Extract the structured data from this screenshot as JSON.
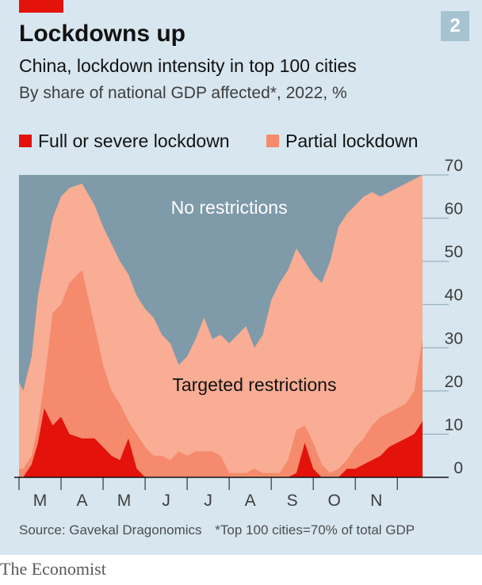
{
  "header": {
    "title": "Lockdowns up",
    "subtitle": "China, lockdown intensity in top 100 cities",
    "subtitle2": "By share of national GDP affected*, 2022, %",
    "chart_number": "2"
  },
  "legend": [
    {
      "label": "Full or severe lockdown",
      "color": "#e3120b"
    },
    {
      "label": "Partial lockdown",
      "color": "#f58a6d"
    }
  ],
  "footer": {
    "source": "Source: Gavekal Dragonomics",
    "note": "*Top 100 cities=70% of total GDP"
  },
  "brand": "The Economist",
  "colors": {
    "background": "#d7e6ef",
    "no_restrictions": "#7f9aa8",
    "targeted": "#f8ad94",
    "partial": "#f58a6d",
    "full": "#e3120b",
    "gridline": "#8aa5b3"
  },
  "chart_data": {
    "type": "area",
    "stacked": true,
    "title": "Lockdowns up",
    "ylabel": "By share of national GDP affected*, 2022, %",
    "ylim": [
      0,
      70
    ],
    "yticks": [
      0,
      10,
      20,
      30,
      40,
      50,
      60,
      70
    ],
    "xlim": [
      0,
      9.6
    ],
    "x_tick_labels": [
      "M",
      "A",
      "M",
      "J",
      "J",
      "A",
      "S",
      "O",
      "N"
    ],
    "x": [
      0,
      0.1,
      0.3,
      0.45,
      0.6,
      0.8,
      1.0,
      1.2,
      1.5,
      1.8,
      2.0,
      2.2,
      2.4,
      2.6,
      2.8,
      3.0,
      3.2,
      3.4,
      3.6,
      3.8,
      4.0,
      4.2,
      4.4,
      4.6,
      4.8,
      5.0,
      5.2,
      5.4,
      5.6,
      5.8,
      6.0,
      6.2,
      6.4,
      6.6,
      6.8,
      7.0,
      7.2,
      7.4,
      7.6,
      7.8,
      8.0,
      8.2,
      8.4,
      8.6,
      8.8,
      9.0,
      9.2,
      9.4,
      9.6
    ],
    "series": [
      {
        "name": "Full or severe lockdown",
        "values": [
          0,
          0,
          3,
          8,
          16,
          12,
          14,
          10,
          9,
          9,
          7,
          5,
          4,
          9,
          2,
          0,
          0,
          0,
          0,
          0,
          0,
          0,
          0,
          0,
          0,
          0,
          0,
          0,
          0,
          0,
          0,
          0,
          0,
          1,
          8,
          2,
          0,
          0,
          0,
          2,
          2,
          3,
          4,
          5,
          7,
          8,
          9,
          10,
          13
        ]
      },
      {
        "name": "Partial lockdown",
        "values": [
          2,
          2,
          5,
          12,
          22,
          38,
          40,
          45,
          48,
          35,
          26,
          20,
          17,
          13,
          10,
          7,
          5,
          5,
          4,
          6,
          5,
          6,
          6,
          6,
          5,
          1,
          1,
          1,
          2,
          1,
          1,
          1,
          4,
          11,
          12,
          8,
          3,
          1,
          2,
          4,
          7,
          9,
          12,
          14,
          15,
          16,
          17,
          20,
          32
        ]
      },
      {
        "name": "Targeted restrictions",
        "values": [
          22,
          20,
          28,
          42,
          50,
          60,
          65,
          67,
          68,
          63,
          58,
          54,
          50,
          47,
          42,
          39,
          37,
          33,
          31,
          26,
          28,
          32,
          37,
          32,
          33,
          31,
          33,
          35,
          30,
          33,
          41,
          45,
          48,
          53,
          50,
          47,
          45,
          50,
          58,
          61,
          63,
          65,
          66,
          65,
          66,
          67,
          68,
          69,
          70
        ]
      },
      {
        "name": "No restrictions",
        "values": [
          70,
          70,
          70,
          70,
          70,
          70,
          70,
          70,
          70,
          70,
          70,
          70,
          70,
          70,
          70,
          70,
          70,
          70,
          70,
          70,
          70,
          70,
          70,
          70,
          70,
          70,
          70,
          70,
          70,
          70,
          70,
          70,
          70,
          70,
          70,
          70,
          70,
          70,
          70,
          70,
          70,
          70,
          70,
          70,
          70,
          70,
          70,
          70,
          70
        ]
      }
    ],
    "annotations": [
      {
        "text": "No restrictions",
        "x": 5.0,
        "y": 61
      },
      {
        "text": "Targeted restrictions",
        "x": 5.6,
        "y": 20
      }
    ]
  }
}
